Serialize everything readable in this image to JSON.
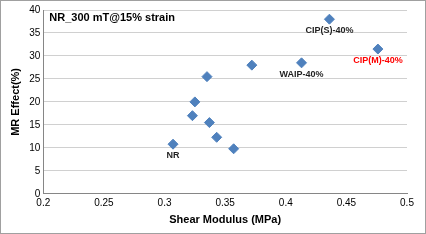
{
  "chart_data": {
    "type": "scatter",
    "title": "NR_300 mT@15% strain",
    "x_label": "Shear Modulus (MPa)",
    "y_label": "MR Effect(%)",
    "x": [
      0.307,
      0.323,
      0.325,
      0.335,
      0.337,
      0.343,
      0.357,
      0.372,
      0.413,
      0.436,
      0.476
    ],
    "values": [
      10.8,
      17,
      20,
      25.5,
      15.5,
      12.3,
      9.8,
      28,
      28.5,
      38,
      31.5
    ],
    "color": "#4f81bd",
    "marker": "diamond",
    "xlim": [
      0.2,
      0.5
    ],
    "xticks": [
      0.2,
      0.25,
      0.3,
      0.35,
      0.4,
      0.45,
      0.5
    ],
    "ylim": [
      0,
      40
    ],
    "yticks": [
      0,
      5,
      10,
      15,
      20,
      25,
      30,
      35,
      40
    ],
    "grid": "y",
    "annotations": [
      {
        "text": "NR",
        "x": 0.307,
        "y": 10.8,
        "color": "#1f1f1f"
      },
      {
        "text": "WAIP-40%",
        "x": 0.413,
        "y": 28.5,
        "color": "#1f1f1f"
      },
      {
        "text": "CIP(S)-40%",
        "x": 0.436,
        "y": 38,
        "color": "#1f1f1f"
      },
      {
        "text": "CIP(M)-40%",
        "x": 0.476,
        "y": 31.5,
        "color": "#ff0000"
      }
    ]
  }
}
